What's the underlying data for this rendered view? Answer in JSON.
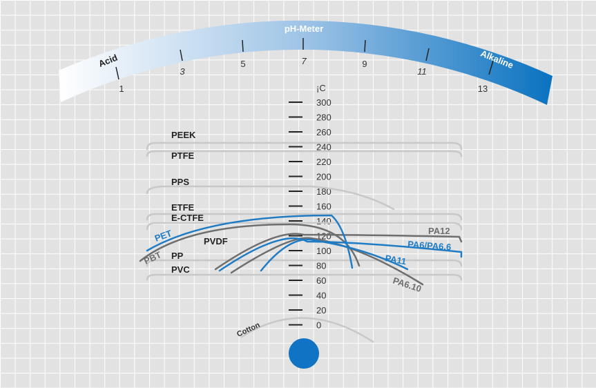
{
  "ph_meter": {
    "title": "pH-Meter",
    "acid": "Acid",
    "alkaline": "Alkaline",
    "scale": [
      "1",
      "3",
      "5",
      "7",
      "9",
      "11",
      "13"
    ]
  },
  "thermometer": {
    "unit": "¡C",
    "ticks": [
      "300",
      "280",
      "260",
      "240",
      "220",
      "200",
      "180",
      "160",
      "140",
      "120",
      "100",
      "80",
      "60",
      "40",
      "20",
      "0"
    ]
  },
  "materials": [
    "PEEK",
    "PTFE",
    "PPS",
    "ETFE",
    "E-CTFE",
    "PET",
    "PVDF",
    "PBT",
    "PP",
    "PVC",
    "PA12",
    "PA6/PA6.6",
    "PA11",
    "PA6.10",
    "Cotton"
  ]
}
